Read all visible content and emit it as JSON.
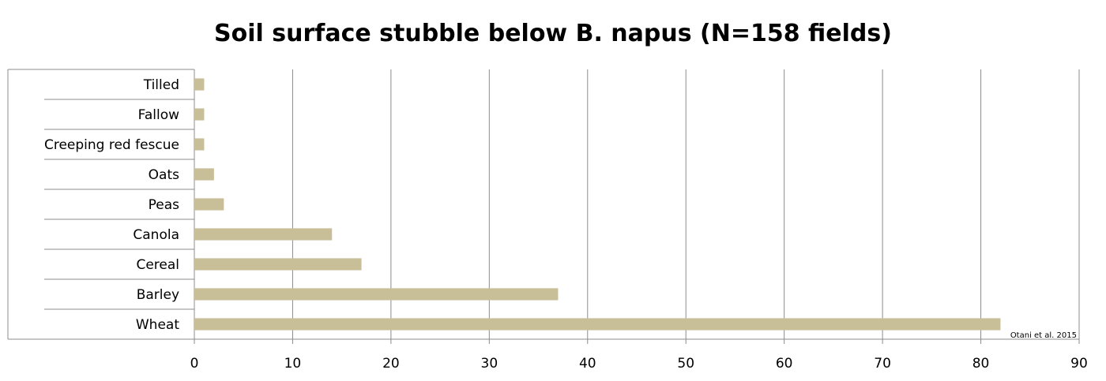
{
  "chart_data": {
    "type": "bar",
    "orientation": "horizontal",
    "title": "Soil surface stubble below B. napus (N=158 fields)",
    "categories": [
      "Tilled",
      "Fallow",
      "Creeping red fescue",
      "Oats",
      "Peas",
      "Canola",
      "Cereal",
      "Barley",
      "Wheat"
    ],
    "values": [
      1,
      1,
      1,
      2,
      3,
      14,
      17,
      37,
      82
    ],
    "xlim": [
      0,
      90
    ],
    "xticks": [
      0,
      10,
      20,
      30,
      40,
      50,
      60,
      70,
      80,
      90
    ],
    "grid": "vertical",
    "legend": "none",
    "bar_color": "#c8bf99",
    "annotation": "Otani et al. 2015"
  }
}
